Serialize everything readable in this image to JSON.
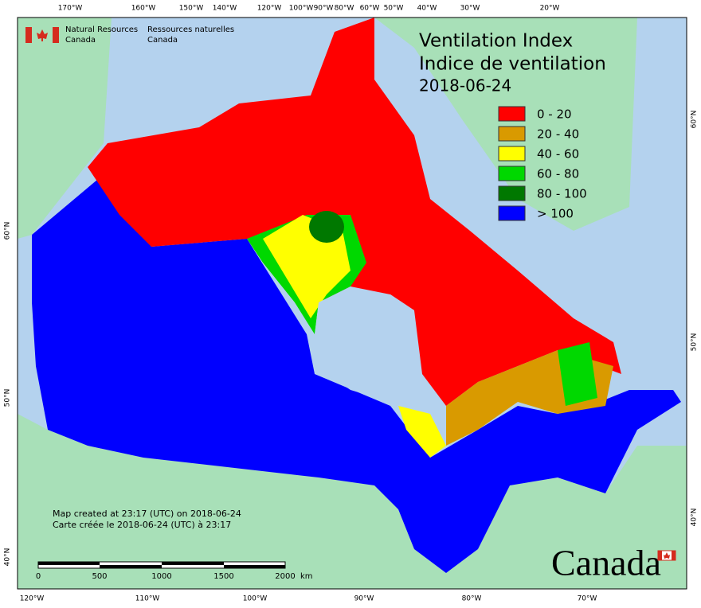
{
  "header": {
    "org_en_1": "Natural Resources",
    "org_en_2": "Canada",
    "org_fr_1": "Ressources naturelles",
    "org_fr_2": "Canada"
  },
  "title": {
    "line1": "Ventilation Index",
    "line2": "Indice de ventilation",
    "date": "2018-06-24"
  },
  "legend": [
    {
      "label": "0 - 20",
      "color": "#ff0000"
    },
    {
      "label": "20 - 40",
      "color": "#d99a00"
    },
    {
      "label": "40 - 60",
      "color": "#ffff00"
    },
    {
      "label": "60 - 80",
      "color": "#00d800"
    },
    {
      "label": "80 - 100",
      "color": "#007800"
    },
    {
      "label": "> 100",
      "color": "#0000ff"
    }
  ],
  "graticule": {
    "top": [
      "170°W",
      "160°W",
      "150°W",
      "140°W",
      "120°W",
      "100°W",
      "90°W",
      "80°W",
      "60°W",
      "50°W",
      "40°W",
      "30°W",
      "20°W"
    ],
    "bottom": [
      "120°W",
      "110°W",
      "100°W",
      "90°W",
      "80°W",
      "70°W"
    ],
    "left": [
      "60°N",
      "50°N",
      "40°N"
    ],
    "right": [
      "60°N",
      "50°N",
      "40°N"
    ]
  },
  "footer": {
    "created_en": "Map created at 23:17 (UTC) on 2018-06-24",
    "created_fr": "Carte créée le 2018-06-24 (UTC) à 23:17"
  },
  "scale": {
    "labels": [
      "0",
      "500",
      "1000",
      "1500",
      "2000"
    ],
    "unit": "km"
  },
  "wordmark": "Canada"
}
